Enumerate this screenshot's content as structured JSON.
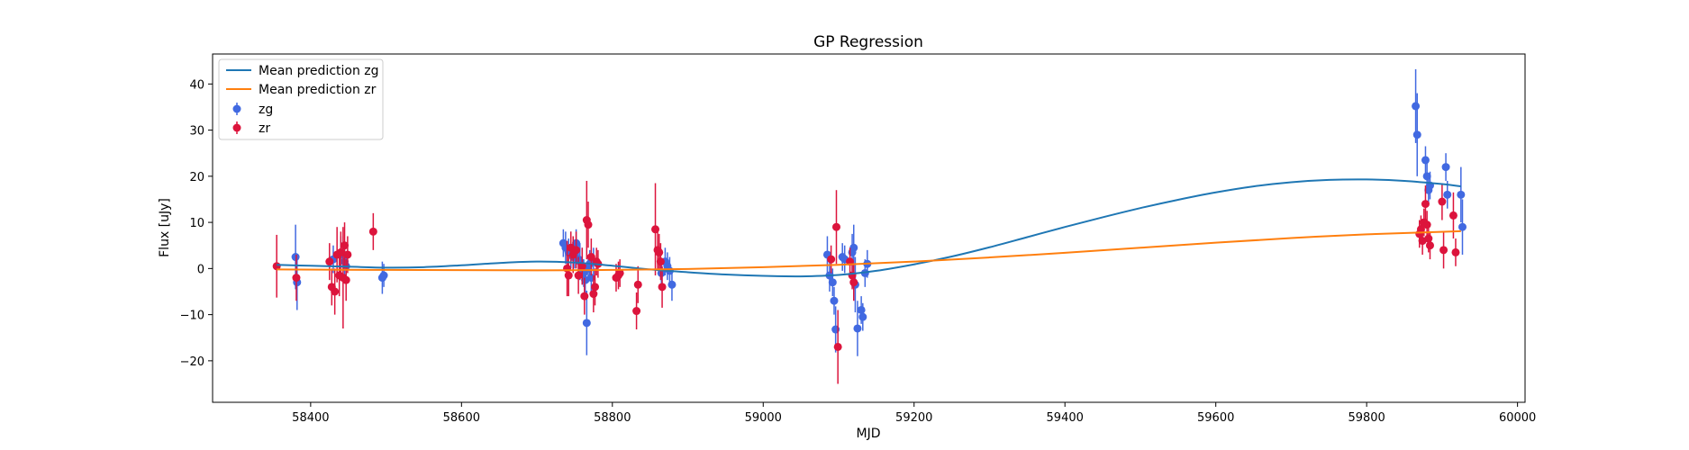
{
  "chart_data": {
    "type": "scatter",
    "title": "GP Regression",
    "xlabel": "MJD",
    "ylabel": "Flux [uJy]",
    "xlim": [
      58270,
      60010
    ],
    "ylim": [
      -29,
      46.5
    ],
    "xticks": [
      58400,
      58600,
      58800,
      59000,
      59200,
      59400,
      59600,
      59800,
      60000
    ],
    "yticks": [
      -20,
      -10,
      0,
      10,
      20,
      30,
      40
    ],
    "ytick_labels": [
      "−20",
      "−10",
      "0",
      "10",
      "20",
      "30",
      "40"
    ],
    "legend_position": "top-left",
    "grid": false,
    "lines": [
      {
        "name": "Mean prediction zg",
        "color": "#1f77b4",
        "x": [
          58355,
          58400,
          58450,
          58500,
          58550,
          58600,
          58650,
          58700,
          58750,
          58800,
          58850,
          58900,
          58950,
          59000,
          59050,
          59100,
          59150,
          59200,
          59250,
          59300,
          59350,
          59400,
          59450,
          59500,
          59550,
          59600,
          59650,
          59700,
          59750,
          59800,
          59850,
          59900,
          59925
        ],
        "y": [
          0.8,
          0.6,
          0.4,
          0.2,
          0.3,
          0.7,
          1.2,
          1.5,
          1.3,
          0.6,
          -0.2,
          -0.8,
          -1.3,
          -1.6,
          -1.7,
          -1.4,
          -0.5,
          0.9,
          2.6,
          4.6,
          6.8,
          9.0,
          11.1,
          13.1,
          14.9,
          16.5,
          17.8,
          18.7,
          19.2,
          19.3,
          19.0,
          18.3,
          17.8
        ]
      },
      {
        "name": "Mean prediction zr",
        "color": "#ff7f0e",
        "x": [
          58355,
          58500,
          58700,
          58800,
          58900,
          59000,
          59100,
          59200,
          59300,
          59400,
          59500,
          59600,
          59700,
          59800,
          59925
        ],
        "y": [
          -0.2,
          -0.3,
          -0.4,
          -0.3,
          -0.1,
          0.3,
          0.8,
          1.5,
          2.4,
          3.4,
          4.5,
          5.6,
          6.6,
          7.4,
          8.1
        ]
      }
    ],
    "series": [
      {
        "name": "zg",
        "color": "#4169e1",
        "points": [
          [
            58380,
            2.5,
            7.0
          ],
          [
            58382,
            -3.0,
            6.0
          ],
          [
            58430,
            2.0,
            3.0
          ],
          [
            58440,
            3.0,
            4.0
          ],
          [
            58445,
            1.5,
            4.0
          ],
          [
            58447,
            0.5,
            3.0
          ],
          [
            58495,
            -2.0,
            3.5
          ],
          [
            58497,
            -1.5,
            2.5
          ],
          [
            58735,
            5.5,
            3.0
          ],
          [
            58738,
            4.5,
            3.5
          ],
          [
            58742,
            3.5,
            3.0
          ],
          [
            58745,
            4.0,
            4.0
          ],
          [
            58748,
            2.5,
            3.5
          ],
          [
            58750,
            3.0,
            3.0
          ],
          [
            58752,
            5.5,
            3.0
          ],
          [
            58755,
            2.0,
            3.0
          ],
          [
            58757,
            1.5,
            4.0
          ],
          [
            58760,
            0.5,
            4.0
          ],
          [
            58762,
            -1.0,
            3.0
          ],
          [
            58764,
            -2.5,
            3.0
          ],
          [
            58766,
            -11.8,
            7.0
          ],
          [
            58768,
            0.0,
            3.0
          ],
          [
            58770,
            1.0,
            3.0
          ],
          [
            58772,
            -2.0,
            3.0
          ],
          [
            58775,
            1.5,
            3.0
          ],
          [
            58865,
            -1.0,
            3.0
          ],
          [
            58870,
            1.5,
            3.0
          ],
          [
            58873,
            0.5,
            3.0
          ],
          [
            58876,
            -0.5,
            3.0
          ],
          [
            58879,
            -3.5,
            3.5
          ],
          [
            59085,
            3.0,
            4.0
          ],
          [
            59088,
            -1.5,
            3.5
          ],
          [
            59092,
            -3.0,
            3.0
          ],
          [
            59094,
            -7.0,
            3.0
          ],
          [
            59096,
            -13.2,
            5.0
          ],
          [
            59105,
            2.5,
            3.0
          ],
          [
            59108,
            2.0,
            3.0
          ],
          [
            59118,
            3.5,
            4.0
          ],
          [
            59120,
            4.5,
            5.0
          ],
          [
            59122,
            -3.5,
            6.0
          ],
          [
            59125,
            -13.0,
            6.0
          ],
          [
            59130,
            -9.0,
            3.0
          ],
          [
            59132,
            -10.5,
            3.0
          ],
          [
            59135,
            -1.0,
            3.0
          ],
          [
            59138,
            1.0,
            3.0
          ],
          [
            59865,
            35.2,
            8.0
          ],
          [
            59867,
            29.0,
            9.0
          ],
          [
            59878,
            23.5,
            3.0
          ],
          [
            59880,
            20.0,
            3.0
          ],
          [
            59882,
            17.0,
            3.0
          ],
          [
            59884,
            18.0,
            3.0
          ],
          [
            59905,
            22.0,
            3.0
          ],
          [
            59907,
            16.0,
            3.0
          ],
          [
            59925,
            16.0,
            6.0
          ],
          [
            59927,
            9.0,
            6.0
          ]
        ]
      },
      {
        "name": "zr",
        "color": "#dc143c",
        "points": [
          [
            58355,
            0.5,
            6.8
          ],
          [
            58381,
            -2.0,
            5.0
          ],
          [
            58425,
            1.5,
            4.0
          ],
          [
            58428,
            -4.0,
            4.0
          ],
          [
            58432,
            -5.0,
            5.0
          ],
          [
            58435,
            3.0,
            6.0
          ],
          [
            58438,
            -1.5,
            4.5
          ],
          [
            58440,
            3.5,
            4.5
          ],
          [
            58443,
            -2.0,
            11.0
          ],
          [
            58445,
            5.0,
            5.0
          ],
          [
            58447,
            -2.5,
            4.5
          ],
          [
            58449,
            3.0,
            4.0
          ],
          [
            58483,
            8.0,
            4.0
          ],
          [
            58740,
            0.0,
            6.0
          ],
          [
            58742,
            -1.5,
            4.5
          ],
          [
            58745,
            4.5,
            3.5
          ],
          [
            58748,
            3.0,
            4.0
          ],
          [
            58752,
            4.0,
            4.0
          ],
          [
            58755,
            -1.5,
            4.0
          ],
          [
            58760,
            0.5,
            4.0
          ],
          [
            58763,
            -6.0,
            4.0
          ],
          [
            58766,
            10.5,
            8.5
          ],
          [
            58768,
            9.5,
            5.0
          ],
          [
            58772,
            2.5,
            4.0
          ],
          [
            58775,
            -5.5,
            4.0
          ],
          [
            58777,
            -4.0,
            4.0
          ],
          [
            58779,
            1.5,
            3.0
          ],
          [
            58781,
            1.0,
            3.0
          ],
          [
            58805,
            -2.0,
            3.0
          ],
          [
            58808,
            -1.5,
            3.0
          ],
          [
            58810,
            -1.0,
            3.0
          ],
          [
            58832,
            -9.2,
            4.0
          ],
          [
            58834,
            -3.5,
            4.0
          ],
          [
            58857,
            8.5,
            10.0
          ],
          [
            58860,
            4.0,
            4.5
          ],
          [
            58862,
            3.5,
            4.0
          ],
          [
            58864,
            1.5,
            4.0
          ],
          [
            58866,
            -4.0,
            4.5
          ],
          [
            59090,
            2.0,
            3.0
          ],
          [
            59097,
            9.0,
            8.0
          ],
          [
            59099,
            -17.0,
            8.0
          ],
          [
            59115,
            1.5,
            3.0
          ],
          [
            59118,
            -1.5,
            3.0
          ],
          [
            59120,
            -3.0,
            4.0
          ],
          [
            59870,
            7.5,
            3.0
          ],
          [
            59872,
            8.5,
            3.0
          ],
          [
            59874,
            6.0,
            3.0
          ],
          [
            59876,
            10.0,
            3.0
          ],
          [
            59878,
            14.0,
            4.0
          ],
          [
            59880,
            9.5,
            3.0
          ],
          [
            59882,
            6.5,
            3.0
          ],
          [
            59884,
            5.0,
            3.0
          ],
          [
            59900,
            14.5,
            4.0
          ],
          [
            59902,
            4.0,
            4.0
          ],
          [
            59915,
            11.5,
            5.0
          ],
          [
            59918,
            3.5,
            3.0
          ]
        ]
      }
    ]
  }
}
